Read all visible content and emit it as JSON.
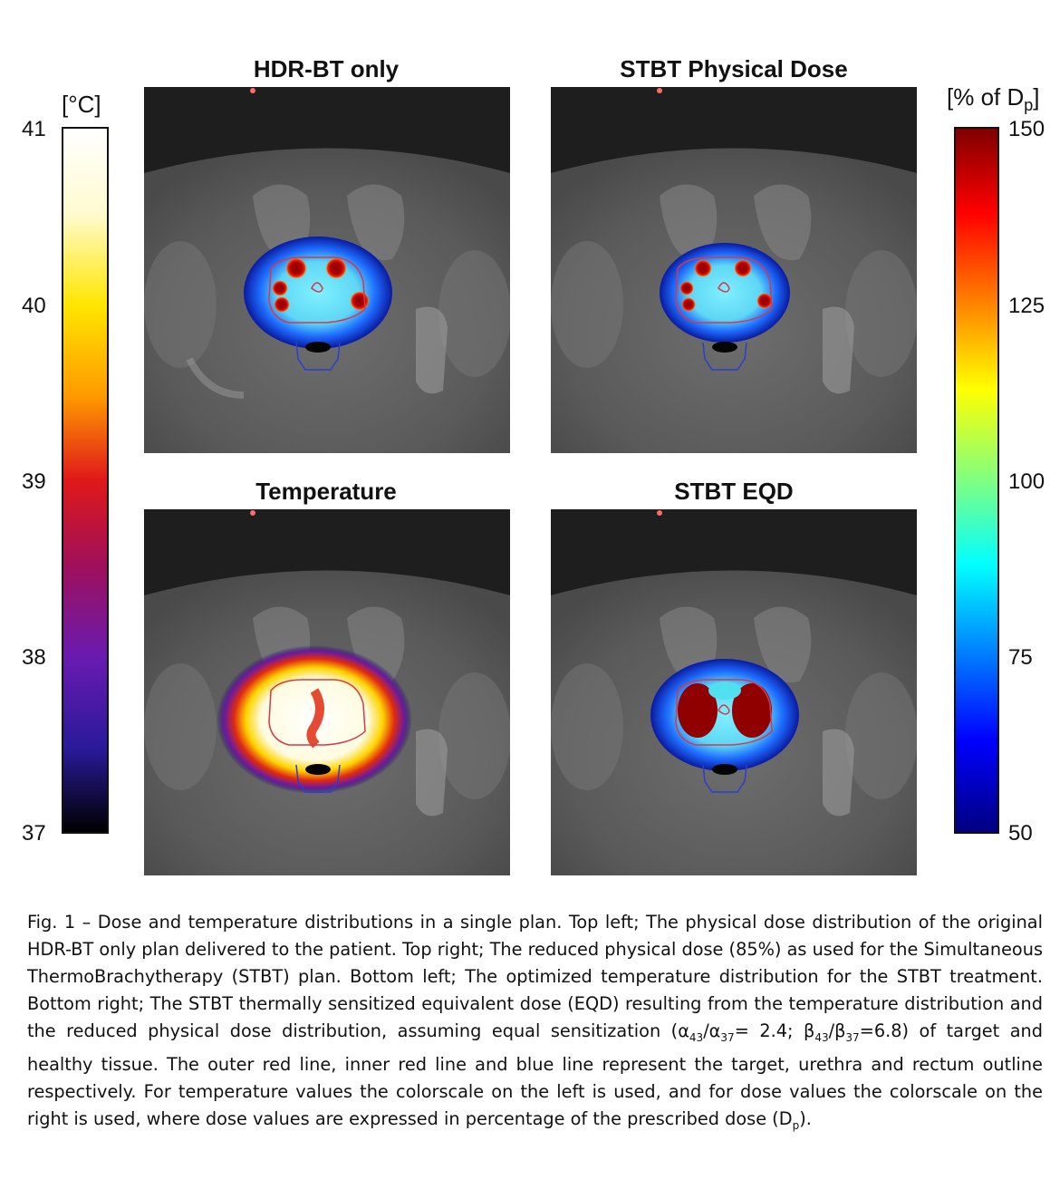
{
  "panels": {
    "top_left": {
      "title": "HDR-BT only"
    },
    "top_right": {
      "title": "STBT Physical Dose"
    },
    "bottom_left": {
      "title": "Temperature"
    },
    "bottom_right": {
      "title": "STBT EQD"
    }
  },
  "temp_scale": {
    "unit": "[°C]",
    "ticks": [
      "41",
      "40",
      "39",
      "38",
      "37"
    ]
  },
  "dose_scale": {
    "unit_prefix": "[% of D",
    "unit_sub": "p",
    "unit_suffix": "]",
    "ticks": [
      "150",
      "125",
      "100",
      "75",
      "50"
    ]
  },
  "caption": {
    "p1": "Fig. 1 – Dose and temperature distributions in a single plan. Top left; The physical dose distribution of the original HDR-BT only plan delivered to the patient. Top right; The reduced physical dose (85%) as used for the Simultaneous ThermoBrachytherapy (STBT) plan. Bottom left; The optimized temperature distribution for the STBT treatment. Bottom right; The STBT thermally sensitized equivalent dose (EQD) resulting from the temperature distribution and the reduced physical dose distribution, assuming equal sensitization (α",
    "sub1": "43",
    "p2": "/α",
    "sub2": "37",
    "p3": "= 2.4;  β",
    "sub3": "43",
    "p4": "/β",
    "sub4": "37",
    "p5": "=6.8) of target and healthy tissue. The outer red line, inner red line and blue line represent the target, urethra and rectum outline respectively. For temperature values the colorscale on the left is used, and for dose values the colorscale on the right is used, where dose values are expressed in percentage of the prescribed dose (D",
    "sub5": "p",
    "p6": ")."
  },
  "colors": {
    "target_outline": "#d23a4a",
    "rectum_outline": "#2a3fd0"
  }
}
